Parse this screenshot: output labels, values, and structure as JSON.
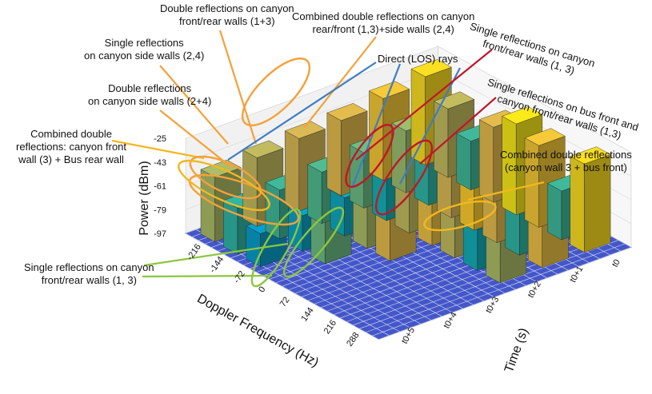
{
  "chart_data": {
    "type": "bar3d",
    "title": "",
    "xlabel": "Doppler Frequency (Hz)",
    "ylabel": "Time (s)",
    "zlabel": "Power (dBm)",
    "doppler_ticks": [
      "-216",
      "-144",
      "-72",
      "0",
      "72",
      "144",
      "216",
      "288"
    ],
    "time_ticks": [
      "t0",
      "t0+1",
      "t0+2",
      "t0+3",
      "t0+4",
      "t0+5"
    ],
    "power_ticks": [
      "-25",
      "-43",
      "-61",
      "-79",
      "-97"
    ],
    "zlim": [
      -97,
      -25
    ],
    "colormap": "parula",
    "series": [
      {
        "time": "t0",
        "doppler": [
          -216,
          -144,
          -72,
          0,
          72,
          144,
          216,
          288
        ],
        "power": [
          -30,
          -45,
          -60,
          -40,
          -28,
          -35,
          -60,
          -30
        ]
      },
      {
        "time": "t0+1",
        "doppler": [
          -216,
          -144,
          -72,
          0,
          72,
          144,
          216,
          288
        ],
        "power": [
          -35,
          -50,
          -62,
          -42,
          -33,
          -40,
          -62,
          -38
        ]
      },
      {
        "time": "t0+2",
        "doppler": [
          -216,
          -144,
          -72,
          0,
          72,
          144,
          216,
          288
        ],
        "power": [
          -40,
          -55,
          -65,
          -45,
          -38,
          -45,
          -66,
          -48
        ]
      },
      {
        "time": "t0+3",
        "doppler": [
          -216,
          -144,
          -72,
          0,
          72,
          144,
          216,
          288
        ],
        "power": [
          -42,
          -58,
          -68,
          -48,
          -40,
          -97,
          -97,
          -97
        ]
      },
      {
        "time": "t0+4",
        "doppler": [
          -216,
          -144,
          -72,
          0,
          72,
          144,
          216,
          288
        ],
        "power": [
          -45,
          -60,
          -70,
          -55,
          -97,
          -97,
          -97,
          -97
        ]
      },
      {
        "time": "t0+5",
        "doppler": [
          -216,
          -144,
          -72,
          0,
          72,
          144,
          216,
          288
        ],
        "power": [
          -48,
          -62,
          -72,
          -97,
          -97,
          -97,
          -97,
          -97
        ]
      }
    ]
  },
  "annotations": [
    {
      "id": "double-side",
      "lines": [
        "Double reflections",
        "on canyon side walls (2+4)"
      ],
      "color": "#f4a13a"
    },
    {
      "id": "single-side",
      "lines": [
        "Single reflections",
        "on canyon side walls (2,4)"
      ],
      "color": "#f4a13a"
    },
    {
      "id": "double-front-rear",
      "lines": [
        "Double reflections on canyon",
        "front/rear walls (1+3)"
      ],
      "color": "#f4a13a"
    },
    {
      "id": "combined-side",
      "lines": [
        "Combined double reflections on canyon",
        "rear/front (1,3)+side walls (2,4)"
      ],
      "color": "#f4a13a"
    },
    {
      "id": "direct-los",
      "lines": [
        "Direct (LOS) rays"
      ],
      "color": "#3d7cc4"
    },
    {
      "id": "single-front-rear-top",
      "lines": [
        "Single reflections on canyon",
        "front/rear walls (1, 3)"
      ],
      "color": "#c0162a"
    },
    {
      "id": "single-bus",
      "lines": [
        "Single reflections on bus front and",
        "canyon front/rear walls (1,3)"
      ],
      "color": "#c0162a"
    },
    {
      "id": "combined-bus-front",
      "lines": [
        "Combined double reflections",
        "(canyon wall 3 + bus front)"
      ],
      "color": "#f2b81e"
    },
    {
      "id": "combined-bus-rear",
      "lines": [
        "Combined double",
        "reflections: canyon front",
        "wall (3) + Bus rear wall"
      ],
      "color": "#f2b81e"
    },
    {
      "id": "single-front-rear-bottom",
      "lines": [
        "Single reflections on canyon",
        "front/rear walls (1, 3)"
      ],
      "color": "#8cc63f"
    }
  ]
}
